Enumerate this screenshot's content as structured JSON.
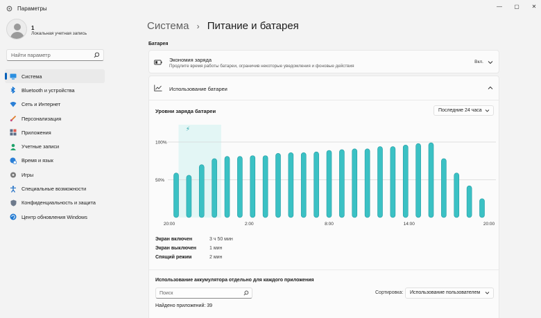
{
  "window": {
    "title": "Параметры",
    "controls": {
      "minimize": "—",
      "maximize": "▢",
      "close": "✕"
    }
  },
  "profile": {
    "name": "1",
    "account_type": "Локальная учетная запись"
  },
  "sidebar": {
    "search_placeholder": "Найти параметр",
    "items": [
      {
        "label": "Система",
        "icon": "monitor-icon",
        "active": true
      },
      {
        "label": "Bluetooth и устройства",
        "icon": "bluetooth-icon"
      },
      {
        "label": "Сеть и Интернет",
        "icon": "wifi-icon"
      },
      {
        "label": "Персонализация",
        "icon": "brush-icon"
      },
      {
        "label": "Приложения",
        "icon": "apps-icon"
      },
      {
        "label": "Учетные записи",
        "icon": "person-icon"
      },
      {
        "label": "Время и язык",
        "icon": "globe-clock-icon"
      },
      {
        "label": "Игры",
        "icon": "gamepad-icon"
      },
      {
        "label": "Специальные возможности",
        "icon": "accessibility-icon"
      },
      {
        "label": "Конфиденциальность и защита",
        "icon": "shield-icon"
      },
      {
        "label": "Центр обновления Windows",
        "icon": "update-icon"
      }
    ]
  },
  "header": {
    "parent": "Система",
    "separator": "›",
    "current": "Питание и батарея"
  },
  "battery_section": {
    "label": "Батарея",
    "saver": {
      "title": "Экономия заряда",
      "description": "Продлите время работы батареи, ограничив некоторые уведомления и фоновые действия",
      "value": "Вкл."
    },
    "usage": {
      "title": "Использование батареи",
      "chart_title": "Уровни заряда батареи",
      "range": "Последние 24 часа"
    }
  },
  "chart_data": {
    "type": "bar",
    "title": "Уровни заряда батареи",
    "y_tick_labels": [
      "100%",
      "50%"
    ],
    "ylim": [
      0,
      100
    ],
    "x_tick_labels": [
      "20:00",
      "2:00",
      "8:00",
      "14:00",
      "20:00"
    ],
    "charging_marker": "charging-bolt-icon",
    "values": [
      59,
      56,
      70,
      78,
      81,
      81,
      82,
      82,
      85,
      86,
      86,
      87,
      89,
      90,
      91,
      91,
      94,
      94,
      96,
      98,
      99,
      78,
      59,
      42,
      25
    ],
    "colors": {
      "bar": "#3bc1c4",
      "bar_dark": "#239ba3",
      "charging_band": "#e3f6f5",
      "grid": "#d6d6d6"
    }
  },
  "stats": [
    {
      "label": "Экран включен",
      "value": "3 ч 50 мин"
    },
    {
      "label": "Экран выключен",
      "value": "1 мин"
    },
    {
      "label": "Спящий режим",
      "value": "2 мин"
    }
  ],
  "per_app": {
    "title": "Использование аккумулятора отдельно для каждого приложения",
    "search_placeholder": "Поиск",
    "sort_label": "Сортировка:",
    "sort_value": "Использование пользователем",
    "found": "Найдено приложений: 39"
  }
}
